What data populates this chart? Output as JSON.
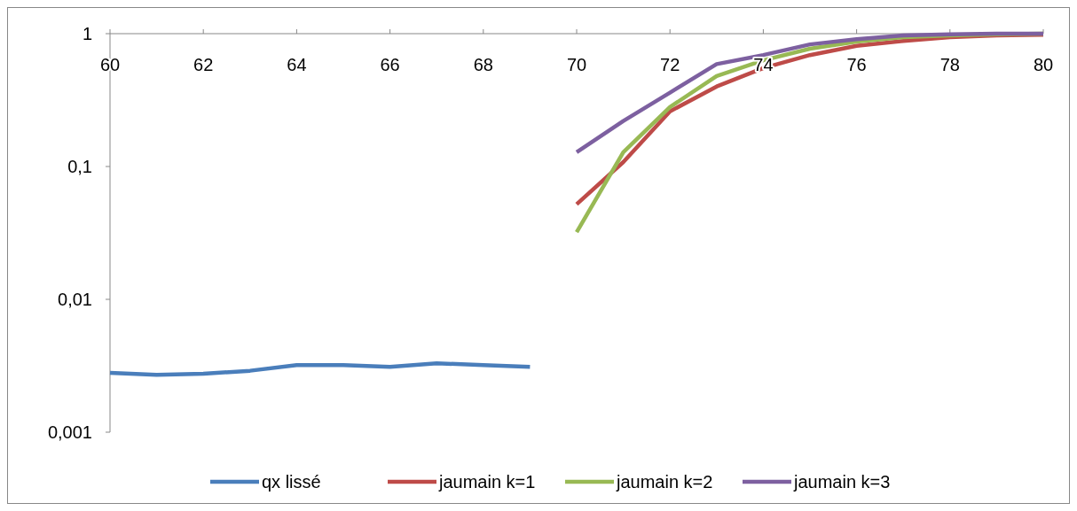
{
  "chart_data": {
    "type": "line",
    "log": "y",
    "legend": "bottom",
    "xlim": [
      60,
      80
    ],
    "xticks": [
      60,
      62,
      64,
      66,
      68,
      70,
      72,
      74,
      76,
      78,
      80
    ],
    "ylim": [
      0.001,
      1
    ],
    "yticks": [
      {
        "value": 0.001,
        "label": "0,001"
      },
      {
        "value": 0.01,
        "label": "0,01"
      },
      {
        "value": 0.1,
        "label": "0,1"
      },
      {
        "value": 1,
        "label": "1"
      }
    ],
    "series": [
      {
        "name": "qx lissé",
        "color": "#4a7ebb",
        "x": [
          60,
          61,
          62,
          63,
          64,
          65,
          66,
          67,
          68,
          69
        ],
        "values": [
          0.0028,
          0.0027,
          0.00275,
          0.0029,
          0.0032,
          0.0032,
          0.0031,
          0.0033,
          0.0032,
          0.0031
        ]
      },
      {
        "name": "jaumain k=1",
        "color": "#be4b48",
        "x": [
          70,
          71,
          72,
          73,
          74,
          75,
          76,
          77,
          78,
          79,
          80
        ],
        "values": [
          0.052,
          0.108,
          0.26,
          0.4,
          0.55,
          0.69,
          0.81,
          0.88,
          0.94,
          0.97,
          0.98
        ]
      },
      {
        "name": "jaumain k=2",
        "color": "#98b954",
        "x": [
          70,
          71,
          72,
          73,
          74,
          75,
          76,
          77,
          78,
          79,
          80
        ],
        "values": [
          0.032,
          0.128,
          0.28,
          0.48,
          0.63,
          0.77,
          0.87,
          0.94,
          0.97,
          0.99,
          1.0
        ]
      },
      {
        "name": "jaumain k=3",
        "color": "#7d60a0",
        "x": [
          70,
          71,
          72,
          73,
          74,
          75,
          76,
          77,
          78,
          79,
          80
        ],
        "values": [
          0.128,
          0.22,
          0.36,
          0.59,
          0.69,
          0.83,
          0.91,
          0.97,
          0.99,
          1.0,
          1.0
        ]
      }
    ]
  }
}
